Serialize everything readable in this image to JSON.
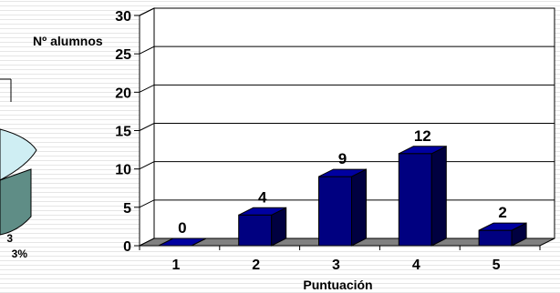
{
  "chart_data": [
    {
      "type": "pie",
      "partially_visible": true,
      "visible_labels": [
        "3",
        "3%"
      ],
      "colors": [
        "#cfeef3",
        "#5f8d86"
      ]
    },
    {
      "type": "bar",
      "title": "Nº alumnos",
      "xlabel": "Puntuación",
      "ylabel": "",
      "categories": [
        "1",
        "2",
        "3",
        "4",
        "5"
      ],
      "values": [
        0,
        4,
        9,
        12,
        2
      ],
      "ylim": [
        0,
        30
      ],
      "yticks": [
        0,
        5,
        10,
        15,
        20,
        25,
        30
      ],
      "grid": true,
      "bar_color": "#000080"
    }
  ]
}
